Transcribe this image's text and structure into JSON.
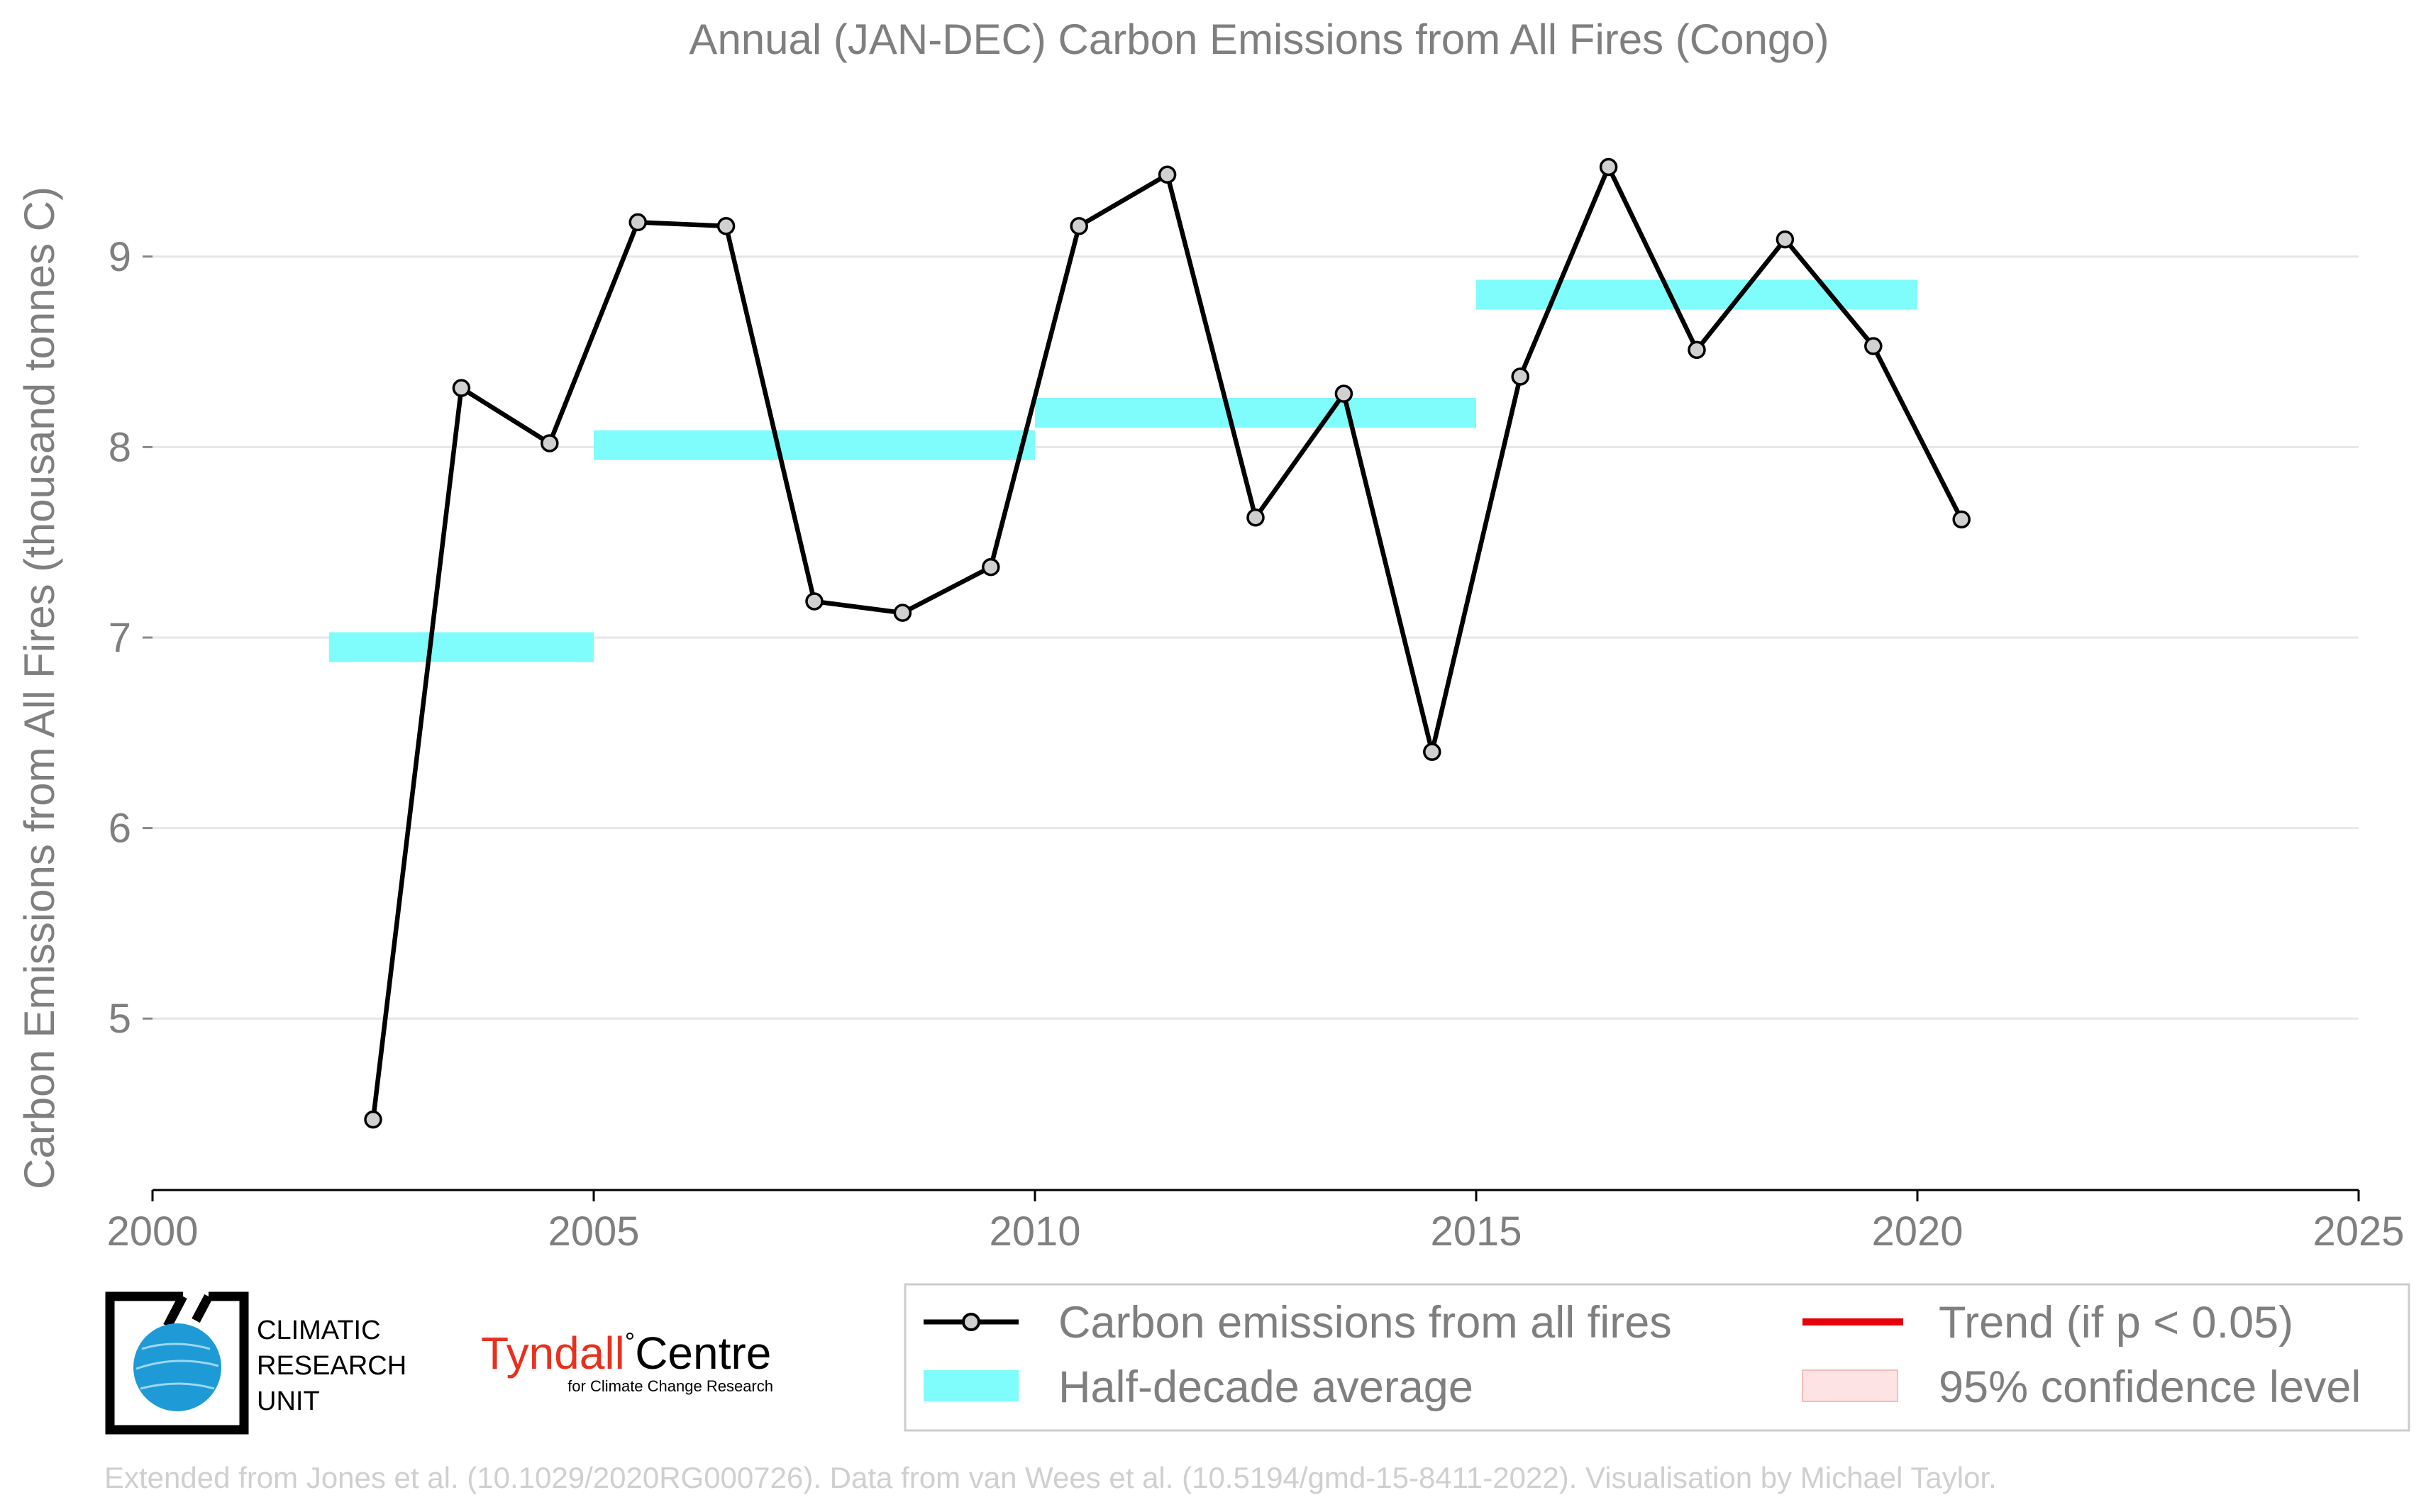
{
  "chart_data": {
    "type": "line",
    "title": "Annual (JAN-DEC) Carbon Emissions from All Fires (Congo)",
    "xlabel": "",
    "ylabel": "Carbon Emissions from All Fires (thousand tonnes C)",
    "xlim": [
      2000,
      2025
    ],
    "ylim": [
      4.1,
      9.9
    ],
    "x_ticks": [
      2000,
      2005,
      2010,
      2015,
      2020,
      2025
    ],
    "y_ticks": [
      5,
      6,
      7,
      8,
      9
    ],
    "grid": "horizontal",
    "legend_position": "bottom",
    "series": [
      {
        "name": "Carbon emissions from all fires",
        "type": "line",
        "color": "#000000",
        "marker_fill": "#d0d0d0",
        "x": [
          2002.5,
          2003.5,
          2004.5,
          2005.5,
          2006.5,
          2007.5,
          2008.5,
          2009.5,
          2010.5,
          2011.5,
          2012.5,
          2013.5,
          2014.5,
          2015.5,
          2016.5,
          2017.5,
          2018.5,
          2019.5,
          2020.5
        ],
        "y": [
          4.47,
          8.31,
          8.02,
          9.18,
          9.16,
          7.19,
          7.13,
          7.37,
          9.16,
          9.43,
          7.63,
          8.28,
          6.4,
          8.37,
          9.47,
          8.51,
          9.09,
          8.53,
          7.62
        ]
      },
      {
        "name": "Half-decade average",
        "type": "step",
        "color": "#7ffcfc",
        "segments": [
          {
            "x0": 2002,
            "x1": 2005,
            "y": 6.95
          },
          {
            "x0": 2005,
            "x1": 2010,
            "y": 8.01
          },
          {
            "x0": 2010,
            "x1": 2015,
            "y": 8.18
          },
          {
            "x0": 2015,
            "x1": 2020,
            "y": 8.8
          }
        ]
      }
    ],
    "legend": [
      {
        "label": "Carbon emissions from all fires",
        "kind": "line-marker",
        "color": "#000000"
      },
      {
        "label": "Half-decade average",
        "kind": "band",
        "color": "#7ffcfc"
      },
      {
        "label": "Trend (if p < 0.05)",
        "kind": "line",
        "color": "#e8000b"
      },
      {
        "label": "95% confidence level",
        "kind": "patch",
        "color": "#fde3e3"
      }
    ]
  },
  "logos": {
    "cru_line1": "CLIMATIC",
    "cru_line2": "RESEARCH",
    "cru_line3": "UNIT",
    "tyndall_name": "Tyndall",
    "tyndall_degree": "°",
    "tyndall_centre": "Centre",
    "tyndall_sub": "for Climate Change Research",
    "tyndall_color": "#e8301e"
  },
  "credit": "Extended from Jones et al. (10.1029/2020RG000726). Data from van Wees et al. (10.5194/gmd-15-8411-2022). Visualisation by Michael Taylor."
}
